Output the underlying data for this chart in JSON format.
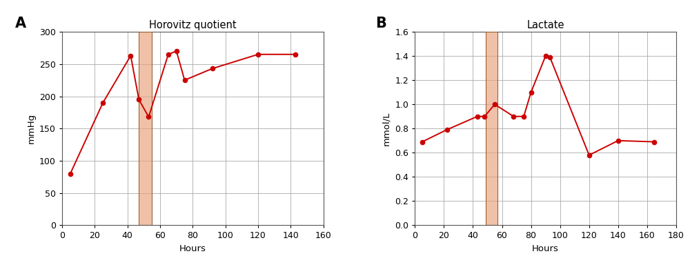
{
  "panel_A": {
    "title": "Horovitz quotient",
    "xlabel": "Hours",
    "ylabel": "mmHg",
    "panel_label": "A",
    "x": [
      5,
      25,
      42,
      47,
      53,
      65,
      70,
      75,
      92,
      120,
      143
    ],
    "y": [
      80,
      190,
      263,
      195,
      168,
      265,
      270,
      225,
      243,
      265,
      265
    ],
    "xlim": [
      0,
      160
    ],
    "ylim": [
      0,
      300
    ],
    "xticks": [
      0,
      20,
      40,
      60,
      80,
      100,
      120,
      140,
      160
    ],
    "yticks": [
      0,
      50,
      100,
      150,
      200,
      250,
      300
    ],
    "bar_x_start": 47,
    "bar_x_end": 55,
    "bar_color": "#e8a07a",
    "bar_alpha": 0.65
  },
  "panel_B": {
    "title": "Lactate",
    "xlabel": "Hours",
    "ylabel": "mmol/L",
    "panel_label": "B",
    "x": [
      5,
      22,
      43,
      48,
      55,
      68,
      75,
      80,
      90,
      93,
      120,
      140,
      165
    ],
    "y": [
      0.69,
      0.79,
      0.9,
      0.9,
      1.0,
      0.9,
      0.9,
      1.1,
      1.4,
      1.39,
      0.58,
      0.7,
      0.69
    ],
    "xlim": [
      0,
      180
    ],
    "ylim": [
      0.0,
      1.6
    ],
    "xticks": [
      0,
      20,
      40,
      60,
      80,
      100,
      120,
      140,
      160,
      180
    ],
    "yticks": [
      0.0,
      0.2,
      0.4,
      0.6,
      0.8,
      1.0,
      1.2,
      1.4,
      1.6
    ],
    "bar_x_start": 49,
    "bar_x_end": 57,
    "bar_color": "#e8a07a",
    "bar_alpha": 0.65
  },
  "line_color": "#cc0000",
  "marker": "o",
  "markersize": 4.5,
  "linewidth": 1.4,
  "grid_color": "#aaaaaa",
  "grid_linewidth": 0.6,
  "background_color": "#ffffff",
  "spine_color": "#555555",
  "fig_width": 10.0,
  "fig_height": 3.84,
  "title_fontsize": 10.5,
  "label_fontsize": 9.5,
  "tick_fontsize": 9,
  "panel_label_fontsize": 15
}
